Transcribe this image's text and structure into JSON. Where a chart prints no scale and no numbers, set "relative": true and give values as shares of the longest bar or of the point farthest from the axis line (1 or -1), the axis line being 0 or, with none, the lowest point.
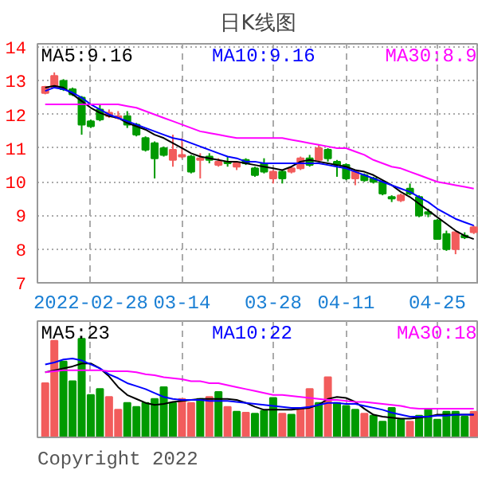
{
  "chart_data": [
    {
      "type": "candlestick",
      "title": "日K线图",
      "categories": [
        null,
        null,
        null,
        null,
        null,
        "2022-02-28",
        null,
        null,
        null,
        null,
        null,
        null,
        null,
        null,
        null,
        "03-14",
        null,
        null,
        null,
        null,
        null,
        null,
        null,
        null,
        null,
        "03-28",
        null,
        null,
        null,
        null,
        null,
        null,
        null,
        "04-11",
        null,
        null,
        null,
        null,
        null,
        null,
        null,
        null,
        null,
        "04-25",
        null,
        null,
        null,
        null
      ],
      "ohlc": [
        [
          12.64,
          12.85,
          12.6,
          12.82
        ],
        [
          12.82,
          13.25,
          12.8,
          13.15
        ],
        [
          13.0,
          13.05,
          12.7,
          12.75
        ],
        [
          12.75,
          12.8,
          12.55,
          12.6
        ],
        [
          12.5,
          12.55,
          11.4,
          11.7
        ],
        [
          11.8,
          11.85,
          11.6,
          11.65
        ],
        [
          12.15,
          12.3,
          11.8,
          11.85
        ],
        [
          11.95,
          12.15,
          11.9,
          12.05
        ],
        [
          11.9,
          12.1,
          11.85,
          11.95
        ],
        [
          11.95,
          12.1,
          11.6,
          11.7
        ],
        [
          11.7,
          11.75,
          11.35,
          11.4
        ],
        [
          11.3,
          11.35,
          10.9,
          10.95
        ],
        [
          11.15,
          11.2,
          10.1,
          10.7
        ],
        [
          11.0,
          11.05,
          10.75,
          10.8
        ],
        [
          10.65,
          11.4,
          10.45,
          10.95
        ],
        [
          10.75,
          11.3,
          10.7,
          10.8
        ],
        [
          10.75,
          10.8,
          10.25,
          10.3
        ],
        [
          10.65,
          10.85,
          10.1,
          10.7
        ],
        [
          10.75,
          10.85,
          10.55,
          10.65
        ],
        [
          10.5,
          10.7,
          10.45,
          10.6
        ],
        [
          10.6,
          10.75,
          10.45,
          10.55
        ],
        [
          10.45,
          10.6,
          10.35,
          10.55
        ],
        [
          10.65,
          10.7,
          10.5,
          10.55
        ],
        [
          10.4,
          10.45,
          10.15,
          10.2
        ],
        [
          10.55,
          10.7,
          10.25,
          10.3
        ],
        [
          10.1,
          10.35,
          9.95,
          10.3
        ],
        [
          10.3,
          10.35,
          9.95,
          10.1
        ],
        [
          10.3,
          10.45,
          10.25,
          10.4
        ],
        [
          10.4,
          10.75,
          10.35,
          10.7
        ],
        [
          10.7,
          10.8,
          10.45,
          10.5
        ],
        [
          10.65,
          11.1,
          10.6,
          11.0
        ],
        [
          10.95,
          11.0,
          10.6,
          10.7
        ],
        [
          10.6,
          10.65,
          10.15,
          10.5
        ],
        [
          10.5,
          10.55,
          10.05,
          10.1
        ],
        [
          10.1,
          10.35,
          9.9,
          10.3
        ],
        [
          10.2,
          10.25,
          10.0,
          10.05
        ],
        [
          10.1,
          10.15,
          9.95,
          10.0
        ],
        [
          10.0,
          10.05,
          9.6,
          9.65
        ],
        [
          9.55,
          9.6,
          9.4,
          9.5
        ],
        [
          9.45,
          9.65,
          9.4,
          9.6
        ],
        [
          9.8,
          9.95,
          9.6,
          9.65
        ],
        [
          9.55,
          9.6,
          8.95,
          9.0
        ],
        [
          9.1,
          9.2,
          8.95,
          9.05
        ],
        [
          8.85,
          8.9,
          8.3,
          8.3
        ],
        [
          8.45,
          8.55,
          7.95,
          8.0
        ],
        [
          8.0,
          8.5,
          7.85,
          8.5
        ],
        [
          8.4,
          8.5,
          8.3,
          8.35
        ],
        [
          8.5,
          8.7,
          8.45,
          8.65
        ]
      ],
      "colors": [
        "#f25c5c",
        "#f25c5c",
        "#009a00",
        "#009a00",
        "#009a00",
        "#009a00",
        "#009a00",
        "#f25c5c",
        "#f25c5c",
        "#009a00",
        "#009a00",
        "#009a00",
        "#009a00",
        "#009a00",
        "#f25c5c",
        "#f25c5c",
        "#009a00",
        "#f25c5c",
        "#009a00",
        "#f25c5c",
        "#009a00",
        "#f25c5c",
        "#009a00",
        "#009a00",
        "#009a00",
        "#f25c5c",
        "#009a00",
        "#f25c5c",
        "#f25c5c",
        "#009a00",
        "#f25c5c",
        "#009a00",
        "#009a00",
        "#009a00",
        "#f25c5c",
        "#009a00",
        "#009a00",
        "#009a00",
        "#009a00",
        "#f25c5c",
        "#009a00",
        "#009a00",
        "#009a00",
        "#009a00",
        "#009a00",
        "#f25c5c",
        "#009a00",
        "#f25c5c"
      ],
      "series": [
        {
          "type": "line",
          "name": "MA5:9.16",
          "color": "#000000",
          "values": [
            12.8,
            12.85,
            12.8,
            12.6,
            12.4,
            12.2,
            12.05,
            11.95,
            11.9,
            11.75,
            11.65,
            11.55,
            11.4,
            11.3,
            11.15,
            11.0,
            10.85,
            10.75,
            10.7,
            10.65,
            10.6,
            10.6,
            10.55,
            10.5,
            10.45,
            10.4,
            10.35,
            10.45,
            10.6,
            10.65,
            10.6,
            10.55,
            10.5,
            10.45,
            10.35,
            10.3,
            10.2,
            10.05,
            9.9,
            9.7,
            9.55,
            9.35,
            9.15,
            8.95,
            8.75,
            8.55,
            8.4,
            8.3
          ]
        },
        {
          "type": "line",
          "name": "MA10:9.16",
          "color": "#0000ff",
          "values": [
            12.7,
            12.8,
            12.75,
            12.65,
            12.5,
            12.3,
            12.15,
            12.0,
            11.9,
            11.8,
            11.7,
            11.6,
            11.5,
            11.4,
            11.3,
            11.25,
            11.15,
            11.05,
            10.95,
            10.85,
            10.75,
            10.7,
            10.6,
            10.6,
            10.55,
            10.55,
            10.55,
            10.55,
            10.55,
            10.55,
            10.55,
            10.5,
            10.45,
            10.4,
            10.3,
            10.2,
            10.1,
            10.0,
            9.9,
            9.8,
            9.7,
            9.55,
            9.4,
            9.2,
            9.05,
            8.9,
            8.8,
            8.7
          ]
        },
        {
          "type": "line",
          "name": "MA30:8.9",
          "color": "#ff00ff",
          "values": [
            12.3,
            12.3,
            12.3,
            12.3,
            12.3,
            12.3,
            12.3,
            12.3,
            12.3,
            12.25,
            12.2,
            12.1,
            12.0,
            11.9,
            11.8,
            11.7,
            11.6,
            11.5,
            11.45,
            11.4,
            11.35,
            11.3,
            11.3,
            11.3,
            11.3,
            11.3,
            11.3,
            11.25,
            11.2,
            11.15,
            11.1,
            11.05,
            11.0,
            11.0,
            10.9,
            10.8,
            10.65,
            10.55,
            10.45,
            10.4,
            10.3,
            10.2,
            10.1,
            10.0,
            9.95,
            9.9,
            9.85,
            9.8
          ]
        }
      ],
      "ylim": [
        7,
        14.1
      ],
      "yticks": [
        14,
        13,
        12,
        11,
        10,
        9,
        8,
        7
      ],
      "grid": true,
      "legend": "top"
    },
    {
      "type": "bar",
      "relative": true,
      "categories": [
        null,
        null,
        null,
        null,
        null,
        null,
        null,
        null,
        null,
        null,
        null,
        null,
        null,
        null,
        null,
        null,
        null,
        null,
        null,
        null,
        null,
        null,
        null,
        null,
        null,
        null,
        null,
        null,
        null,
        null,
        null,
        null,
        null,
        null,
        null,
        null,
        null,
        null,
        null,
        null,
        null,
        null,
        null,
        null,
        null,
        null,
        null,
        null
      ],
      "values": [
        0.55,
        0.98,
        0.77,
        0.57,
        1.0,
        0.43,
        0.49,
        0.41,
        0.28,
        0.35,
        0.31,
        0.35,
        0.39,
        0.51,
        0.35,
        0.39,
        0.35,
        0.39,
        0.41,
        0.46,
        0.31,
        0.26,
        0.25,
        0.24,
        0.27,
        0.4,
        0.24,
        0.23,
        0.3,
        0.49,
        0.35,
        0.61,
        0.35,
        0.32,
        0.28,
        0.24,
        0.22,
        0.16,
        0.3,
        0.18,
        0.16,
        0.22,
        0.29,
        0.18,
        0.26,
        0.26,
        0.21,
        0.26
      ],
      "colors": [
        "#f25c5c",
        "#f25c5c",
        "#009a00",
        "#009a00",
        "#009a00",
        "#009a00",
        "#009a00",
        "#f25c5c",
        "#f25c5c",
        "#009a00",
        "#009a00",
        "#009a00",
        "#009a00",
        "#009a00",
        "#009a00",
        "#f25c5c",
        "#f25c5c",
        "#009a00",
        "#f25c5c",
        "#009a00",
        "#f25c5c",
        "#009a00",
        "#f25c5c",
        "#009a00",
        "#009a00",
        "#009a00",
        "#f25c5c",
        "#009a00",
        "#f25c5c",
        "#f25c5c",
        "#009a00",
        "#f25c5c",
        "#009a00",
        "#009a00",
        "#009a00",
        "#f25c5c",
        "#009a00",
        "#009a00",
        "#009a00",
        "#009a00",
        "#f25c5c",
        "#009a00",
        "#009a00",
        "#009a00",
        "#009a00",
        "#009a00",
        "#009a00",
        "#f25c5c"
      ],
      "series": [
        {
          "type": "line",
          "name": "MA5:23",
          "color": "#000000",
          "values": [
            0.66,
            0.68,
            0.7,
            0.72,
            0.75,
            0.75,
            0.7,
            0.62,
            0.51,
            0.43,
            0.39,
            0.35,
            0.33,
            0.34,
            0.36,
            0.37,
            0.38,
            0.39,
            0.39,
            0.39,
            0.39,
            0.38,
            0.35,
            0.31,
            0.28,
            0.28,
            0.28,
            0.28,
            0.29,
            0.3,
            0.33,
            0.39,
            0.41,
            0.4,
            0.36,
            0.29,
            0.23,
            0.21,
            0.2,
            0.19,
            0.19,
            0.2,
            0.21,
            0.23,
            0.23,
            0.23,
            0.23,
            0.23
          ]
        },
        {
          "type": "line",
          "name": "MA10:22",
          "color": "#0000ff",
          "values": [
            0.74,
            0.76,
            0.79,
            0.8,
            0.78,
            0.74,
            0.7,
            0.64,
            0.6,
            0.55,
            0.52,
            0.49,
            0.45,
            0.41,
            0.39,
            0.38,
            0.38,
            0.38,
            0.37,
            0.37,
            0.37,
            0.36,
            0.35,
            0.34,
            0.33,
            0.32,
            0.31,
            0.3,
            0.3,
            0.31,
            0.33,
            0.35,
            0.35,
            0.34,
            0.34,
            0.32,
            0.3,
            0.28,
            0.25,
            0.23,
            0.21,
            0.21,
            0.21,
            0.22,
            0.22,
            0.23,
            0.23,
            0.23
          ]
        },
        {
          "type": "line",
          "name": "MA30:18",
          "color": "#ff00ff",
          "values": [
            0.66,
            0.67,
            0.68,
            0.68,
            0.68,
            0.68,
            0.68,
            0.67,
            0.67,
            0.67,
            0.66,
            0.64,
            0.63,
            0.61,
            0.6,
            0.59,
            0.57,
            0.57,
            0.55,
            0.55,
            0.53,
            0.51,
            0.49,
            0.47,
            0.45,
            0.43,
            0.43,
            0.42,
            0.41,
            0.4,
            0.39,
            0.38,
            0.38,
            0.37,
            0.36,
            0.36,
            0.35,
            0.34,
            0.33,
            0.32,
            0.3,
            0.29,
            0.29,
            0.29,
            0.29,
            0.29,
            0.29,
            0.29
          ]
        }
      ],
      "grid": "x",
      "legend": "top",
      "annotations": [
        "Copyright 2022"
      ]
    }
  ]
}
